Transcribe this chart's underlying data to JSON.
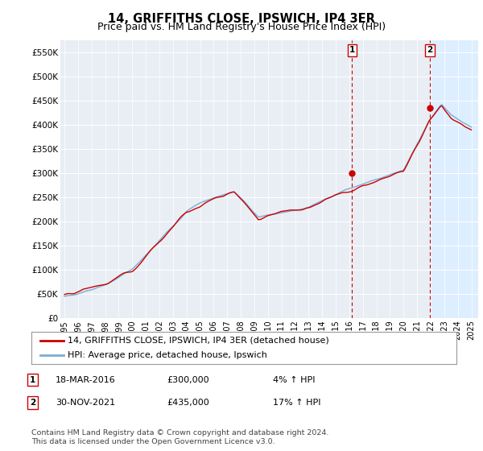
{
  "title": "14, GRIFFITHS CLOSE, IPSWICH, IP4 3ER",
  "subtitle": "Price paid vs. HM Land Registry's House Price Index (HPI)",
  "ylabel_ticks": [
    "£0",
    "£50K",
    "£100K",
    "£150K",
    "£200K",
    "£250K",
    "£300K",
    "£350K",
    "£400K",
    "£450K",
    "£500K",
    "£550K"
  ],
  "ytick_values": [
    0,
    50000,
    100000,
    150000,
    200000,
    250000,
    300000,
    350000,
    400000,
    450000,
    500000,
    550000
  ],
  "ylim": [
    0,
    575000
  ],
  "xlim_start": 1994.7,
  "xlim_end": 2025.5,
  "purchase1_date": 2016.21,
  "purchase1_price": 300000,
  "purchase1_label": "1",
  "purchase2_date": 2021.92,
  "purchase2_price": 435000,
  "purchase2_label": "2",
  "line_color_red": "#cc0000",
  "line_color_blue": "#7aaed4",
  "vline_color": "#cc0000",
  "shade_color": "#ddeeff",
  "plot_bg_color": "#e8eef4",
  "legend_entry1": "14, GRIFFITHS CLOSE, IPSWICH, IP4 3ER (detached house)",
  "legend_entry2": "HPI: Average price, detached house, Ipswich",
  "ann1_date": "18-MAR-2016",
  "ann1_price": "£300,000",
  "ann1_pct": "4% ↑ HPI",
  "ann2_date": "30-NOV-2021",
  "ann2_price": "£435,000",
  "ann2_pct": "17% ↑ HPI",
  "footer": "Contains HM Land Registry data © Crown copyright and database right 2024.\nThis data is licensed under the Open Government Licence v3.0.",
  "title_fontsize": 10.5,
  "subtitle_fontsize": 9,
  "tick_fontsize": 7.5,
  "legend_fontsize": 8,
  "ann_fontsize": 8
}
